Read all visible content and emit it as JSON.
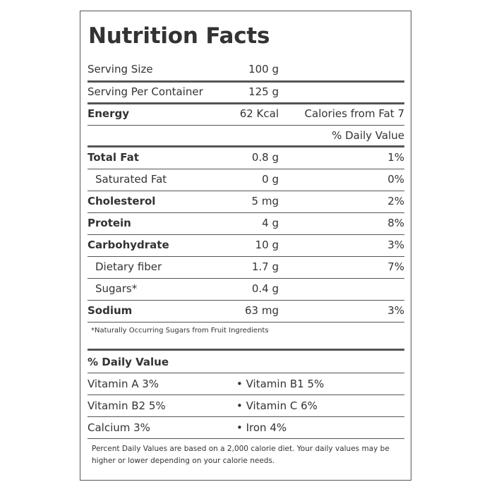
{
  "title": "Nutrition Facts",
  "serving": [
    {
      "label": "Serving Size",
      "amount": "100 g"
    },
    {
      "label": "Serving Per Container",
      "amount": "125 g"
    }
  ],
  "energy": {
    "label": "Energy",
    "amount": "62 Kcal",
    "calories_from_fat": "Calories from Fat 7"
  },
  "daily_value_header": "% Daily Value",
  "nutrients": [
    {
      "label": "Total Fat",
      "amount": "0.8 g",
      "dv": "1%"
    },
    {
      "label": "Saturated Fat",
      "amount": "0 g",
      "dv": "0%"
    },
    {
      "label": "Cholesterol",
      "amount": "5 mg",
      "dv": "2%"
    },
    {
      "label": "Protein",
      "amount": "4 g",
      "dv": "8%"
    },
    {
      "label": "Carbohydrate",
      "amount": "10 g",
      "dv": "3%"
    },
    {
      "label": "Dietary fiber",
      "amount": "1.7 g",
      "dv": "7%"
    },
    {
      "label": "Sugars*",
      "amount": "0.4 g",
      "dv": ""
    },
    {
      "label": "Sodium",
      "amount": "63 mg",
      "dv": "3%"
    }
  ],
  "sugar_footnote": "*Naturally Occurring Sugars from Fruit Ingredients",
  "vitamins_header": "% Daily Value",
  "vitamins": [
    {
      "left": "Vitamin A 3%",
      "right": "• Vitamin B1 5%"
    },
    {
      "left": "Vitamin B2 5%",
      "right": "• Vitamin C 6%"
    },
    {
      "left": "Calcium 3%",
      "right": "• Iron 4%"
    }
  ],
  "disclaimer": "Percent Daily Values are based on a 2,000 calorie diet. Your daily values may be higher or lower depending on your calorie needs."
}
